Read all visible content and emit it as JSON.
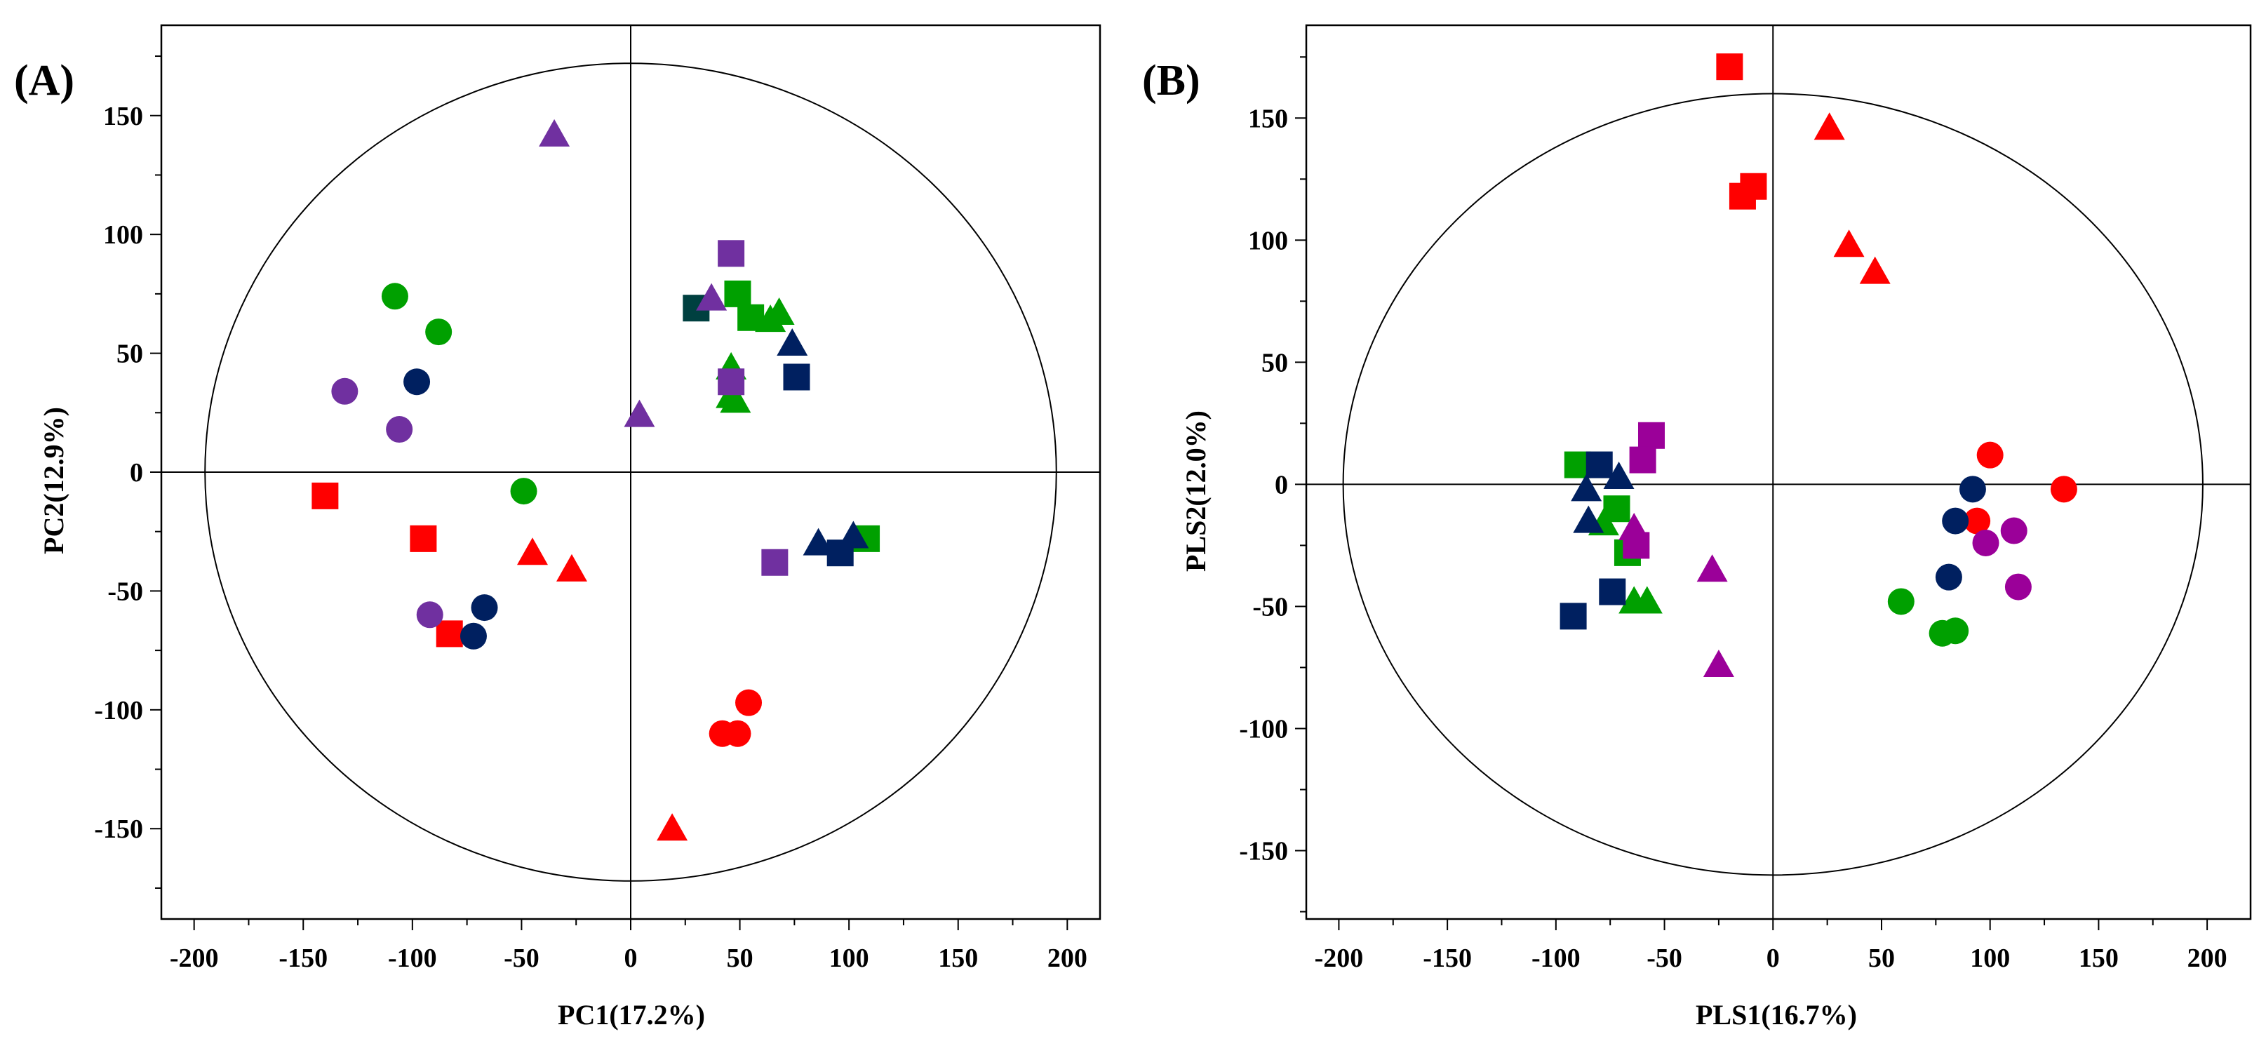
{
  "colors": {
    "red": "#ff0000",
    "green": "#00a000",
    "navy": "#002060",
    "purple": "#7030a0",
    "magenta": "#9b0099",
    "darkgreen": "#004040"
  },
  "chart_data": [
    {
      "type": "scatter",
      "panel_label": "(A)",
      "xlabel": "PC1(17.2%)",
      "ylabel": "PC2(12.9%)",
      "xlim": [
        -215,
        215
      ],
      "ylim": [
        -188,
        188
      ],
      "xticks": [
        -200,
        -150,
        -100,
        -50,
        0,
        50,
        100,
        150,
        200
      ],
      "yticks": [
        -150,
        -100,
        -50,
        0,
        50,
        100,
        150
      ],
      "xtick_labels": [
        "-200",
        "-150",
        "-100",
        "-50",
        "0",
        "50",
        "100",
        "150",
        "200"
      ],
      "ytick_labels": [
        "-150",
        "-100",
        "-50",
        "0",
        "50",
        "100",
        "150"
      ],
      "ellipse_radius": [
        195,
        172
      ],
      "points": [
        {
          "x": -140,
          "y": -10,
          "shape": "square",
          "color": "#ff0000"
        },
        {
          "x": -95,
          "y": -28,
          "shape": "square",
          "color": "#ff0000"
        },
        {
          "x": -83,
          "y": -68,
          "shape": "square",
          "color": "#ff0000"
        },
        {
          "x": -45,
          "y": -34,
          "shape": "triangle",
          "color": "#ff0000"
        },
        {
          "x": -27,
          "y": -41,
          "shape": "triangle",
          "color": "#ff0000"
        },
        {
          "x": 19,
          "y": -150,
          "shape": "triangle",
          "color": "#ff0000"
        },
        {
          "x": 42,
          "y": -110,
          "shape": "circle",
          "color": "#ff0000"
        },
        {
          "x": 49,
          "y": -110,
          "shape": "circle",
          "color": "#ff0000"
        },
        {
          "x": 54,
          "y": -97,
          "shape": "circle",
          "color": "#ff0000"
        },
        {
          "x": -108,
          "y": 74,
          "shape": "circle",
          "color": "#00a000"
        },
        {
          "x": -88,
          "y": 59,
          "shape": "circle",
          "color": "#00a000"
        },
        {
          "x": -49,
          "y": -8,
          "shape": "circle",
          "color": "#00a000"
        },
        {
          "x": 49,
          "y": 75,
          "shape": "square",
          "color": "#00a000"
        },
        {
          "x": 55,
          "y": 65,
          "shape": "square",
          "color": "#00a000"
        },
        {
          "x": 108,
          "y": -28,
          "shape": "square",
          "color": "#00a000"
        },
        {
          "x": 64,
          "y": 64,
          "shape": "triangle",
          "color": "#00a000"
        },
        {
          "x": 68,
          "y": 67,
          "shape": "triangle",
          "color": "#00a000"
        },
        {
          "x": 46,
          "y": 44,
          "shape": "triangle",
          "color": "#00a000"
        },
        {
          "x": 46,
          "y": 32,
          "shape": "triangle",
          "color": "#00a000"
        },
        {
          "x": 48,
          "y": 30,
          "shape": "triangle",
          "color": "#00a000"
        },
        {
          "x": -98,
          "y": 38,
          "shape": "circle",
          "color": "#002060"
        },
        {
          "x": -67,
          "y": -57,
          "shape": "circle",
          "color": "#002060"
        },
        {
          "x": -72,
          "y": -69,
          "shape": "circle",
          "color": "#002060"
        },
        {
          "x": 76,
          "y": 40,
          "shape": "square",
          "color": "#002060"
        },
        {
          "x": 96,
          "y": -34,
          "shape": "square",
          "color": "#002060"
        },
        {
          "x": 30,
          "y": 69,
          "shape": "square",
          "color": "#004040"
        },
        {
          "x": 74,
          "y": 54,
          "shape": "triangle",
          "color": "#002060"
        },
        {
          "x": 86,
          "y": -30,
          "shape": "triangle",
          "color": "#002060"
        },
        {
          "x": 102,
          "y": -27,
          "shape": "triangle",
          "color": "#002060"
        },
        {
          "x": -131,
          "y": 34,
          "shape": "circle",
          "color": "#7030a0"
        },
        {
          "x": -106,
          "y": 18,
          "shape": "circle",
          "color": "#7030a0"
        },
        {
          "x": -92,
          "y": -60,
          "shape": "circle",
          "color": "#7030a0"
        },
        {
          "x": 46,
          "y": 92,
          "shape": "square",
          "color": "#7030a0"
        },
        {
          "x": 46,
          "y": 38,
          "shape": "square",
          "color": "#7030a0"
        },
        {
          "x": 66,
          "y": -38,
          "shape": "square",
          "color": "#7030a0"
        },
        {
          "x": -35,
          "y": 142,
          "shape": "triangle",
          "color": "#7030a0"
        },
        {
          "x": 4,
          "y": 24,
          "shape": "triangle",
          "color": "#7030a0"
        },
        {
          "x": 37,
          "y": 73,
          "shape": "triangle",
          "color": "#7030a0"
        }
      ]
    },
    {
      "type": "scatter",
      "panel_label": "(B)",
      "xlabel": "PLS1(16.7%)",
      "ylabel": "PLS2(12.0%)",
      "xlim": [
        -215,
        220
      ],
      "ylim": [
        -178,
        188
      ],
      "xticks": [
        -200,
        -150,
        -100,
        -50,
        0,
        50,
        100,
        150,
        200
      ],
      "yticks": [
        -150,
        -100,
        -50,
        0,
        50,
        100,
        150
      ],
      "xtick_labels": [
        "-200",
        "-150",
        "-100",
        "-50",
        "0",
        "50",
        "100",
        "150",
        "200"
      ],
      "ytick_labels": [
        "-150",
        "-100",
        "-50",
        "0",
        "50",
        "100",
        "150"
      ],
      "ellipse_radius": [
        198,
        160
      ],
      "points": [
        {
          "x": -20,
          "y": 171,
          "shape": "square",
          "color": "#ff0000"
        },
        {
          "x": -14,
          "y": 118,
          "shape": "square",
          "color": "#ff0000"
        },
        {
          "x": -9,
          "y": 122,
          "shape": "square",
          "color": "#ff0000"
        },
        {
          "x": 26,
          "y": 146,
          "shape": "triangle",
          "color": "#ff0000"
        },
        {
          "x": 35,
          "y": 98,
          "shape": "triangle",
          "color": "#ff0000"
        },
        {
          "x": 47,
          "y": 87,
          "shape": "triangle",
          "color": "#ff0000"
        },
        {
          "x": 100,
          "y": 12,
          "shape": "circle",
          "color": "#ff0000"
        },
        {
          "x": 134,
          "y": -2,
          "shape": "circle",
          "color": "#ff0000"
        },
        {
          "x": 94,
          "y": -15,
          "shape": "circle",
          "color": "#ff0000"
        },
        {
          "x": 59,
          "y": -48,
          "shape": "circle",
          "color": "#00a000"
        },
        {
          "x": 78,
          "y": -61,
          "shape": "circle",
          "color": "#00a000"
        },
        {
          "x": 84,
          "y": -60,
          "shape": "circle",
          "color": "#00a000"
        },
        {
          "x": -90,
          "y": 8,
          "shape": "square",
          "color": "#00a000"
        },
        {
          "x": -72,
          "y": -10,
          "shape": "square",
          "color": "#00a000"
        },
        {
          "x": -67,
          "y": -28,
          "shape": "square",
          "color": "#00a000"
        },
        {
          "x": -78,
          "y": -16,
          "shape": "triangle",
          "color": "#00a000"
        },
        {
          "x": -64,
          "y": -48,
          "shape": "triangle",
          "color": "#00a000"
        },
        {
          "x": -58,
          "y": -48,
          "shape": "triangle",
          "color": "#00a000"
        },
        {
          "x": 92,
          "y": -2,
          "shape": "circle",
          "color": "#002060"
        },
        {
          "x": 84,
          "y": -15,
          "shape": "circle",
          "color": "#002060"
        },
        {
          "x": 81,
          "y": -38,
          "shape": "circle",
          "color": "#002060"
        },
        {
          "x": -80,
          "y": 8,
          "shape": "square",
          "color": "#002060"
        },
        {
          "x": -74,
          "y": -44,
          "shape": "square",
          "color": "#002060"
        },
        {
          "x": -92,
          "y": -54,
          "shape": "square",
          "color": "#002060"
        },
        {
          "x": -86,
          "y": -2,
          "shape": "triangle",
          "color": "#002060"
        },
        {
          "x": -71,
          "y": 3,
          "shape": "triangle",
          "color": "#002060"
        },
        {
          "x": -85,
          "y": -15,
          "shape": "triangle",
          "color": "#002060"
        },
        {
          "x": 98,
          "y": -24,
          "shape": "circle",
          "color": "#9b0099"
        },
        {
          "x": 111,
          "y": -19,
          "shape": "circle",
          "color": "#9b0099"
        },
        {
          "x": 113,
          "y": -42,
          "shape": "circle",
          "color": "#9b0099"
        },
        {
          "x": -56,
          "y": 20,
          "shape": "square",
          "color": "#9b0099"
        },
        {
          "x": -60,
          "y": 10,
          "shape": "square",
          "color": "#9b0099"
        },
        {
          "x": -63,
          "y": -25,
          "shape": "square",
          "color": "#9b0099"
        },
        {
          "x": -64,
          "y": -18,
          "shape": "triangle",
          "color": "#9b0099"
        },
        {
          "x": -28,
          "y": -35,
          "shape": "triangle",
          "color": "#9b0099"
        },
        {
          "x": -25,
          "y": -74,
          "shape": "triangle",
          "color": "#9b0099"
        }
      ]
    }
  ]
}
